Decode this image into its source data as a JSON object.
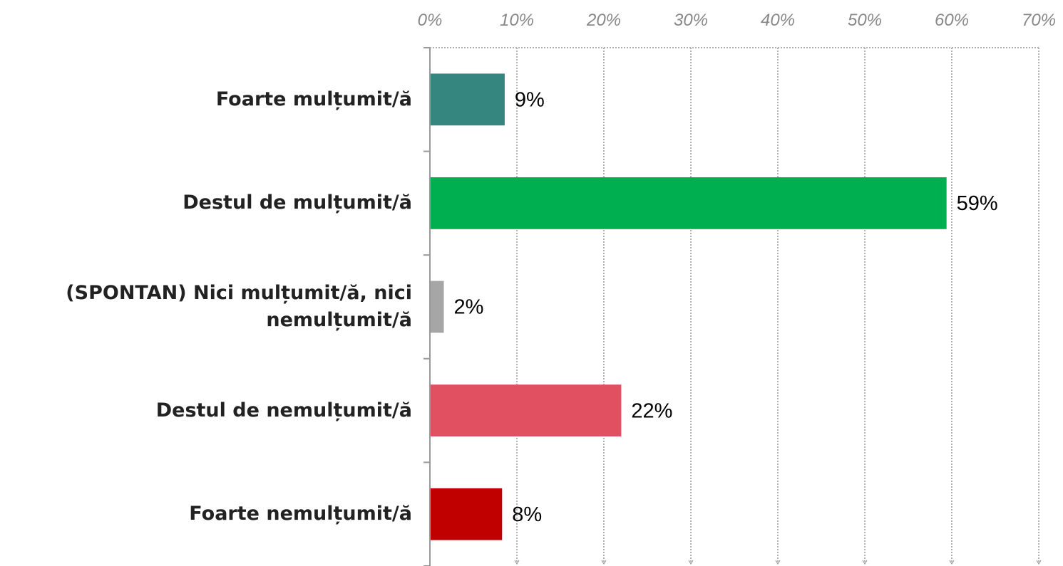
{
  "chart_data": {
    "type": "hbar",
    "categories": [
      "Foarte mulțumit/ă",
      "Destul de mulțumit/ă",
      "(SPONTAN) Nici mulțumit/ă, nici nemulțumit/ă",
      "Destul de nemulțumit/ă",
      "Foarte nemulțumit/ă"
    ],
    "values": [
      8.6,
      59.4,
      1.6,
      22,
      8.3
    ],
    "value_labels": [
      "9%",
      "59%",
      "2%",
      "22%",
      "8%"
    ],
    "colors": [
      "#368680",
      "#00b050",
      "#a6a6a6",
      "#e05060",
      "#c00000"
    ],
    "xlim": [
      0,
      70
    ],
    "xticks": [
      {
        "value": 0,
        "label": "0%"
      },
      {
        "value": 10,
        "label": "10%"
      },
      {
        "value": 20,
        "label": "20%"
      },
      {
        "value": 30,
        "label": "30%"
      },
      {
        "value": 40,
        "label": "40%"
      },
      {
        "value": 50,
        "label": "50%"
      },
      {
        "value": 60,
        "label": "60%"
      },
      {
        "value": 70,
        "label": "70%"
      }
    ],
    "grid": true
  }
}
